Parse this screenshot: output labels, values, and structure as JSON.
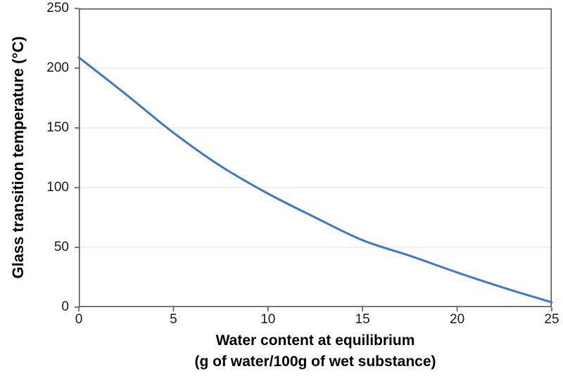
{
  "colors": {
    "line": "#3E79C2",
    "axis": "#4D4D4D",
    "gridline": "#E2E2E2",
    "tick_text": "#1A1A1A",
    "title_text": "#000000",
    "background": "#FFFFFF"
  },
  "chart_data": {
    "type": "line",
    "title": "",
    "ylabel": "Glass transition temperature (°C)",
    "xlabel_line1": "Water content at equilibrium",
    "xlabel_line2": "(g of water/100g of wet substance)",
    "xlim": [
      0,
      25
    ],
    "ylim": [
      0,
      250
    ],
    "xticks": [
      0,
      5,
      10,
      15,
      20,
      25
    ],
    "yticks": [
      0,
      50,
      100,
      150,
      200,
      250
    ],
    "grid": "horizontal-only",
    "legend": "none",
    "series": [
      {
        "color": "#3E79C2",
        "line_width": 3,
        "markers": false,
        "points": [
          [
            0,
            209
          ],
          [
            2.5,
            178
          ],
          [
            5,
            146
          ],
          [
            7.5,
            118
          ],
          [
            10,
            95
          ],
          [
            12.5,
            75
          ],
          [
            15,
            56
          ],
          [
            17.5,
            43
          ],
          [
            20,
            29
          ],
          [
            22.5,
            16
          ],
          [
            25,
            4
          ]
        ]
      }
    ]
  }
}
